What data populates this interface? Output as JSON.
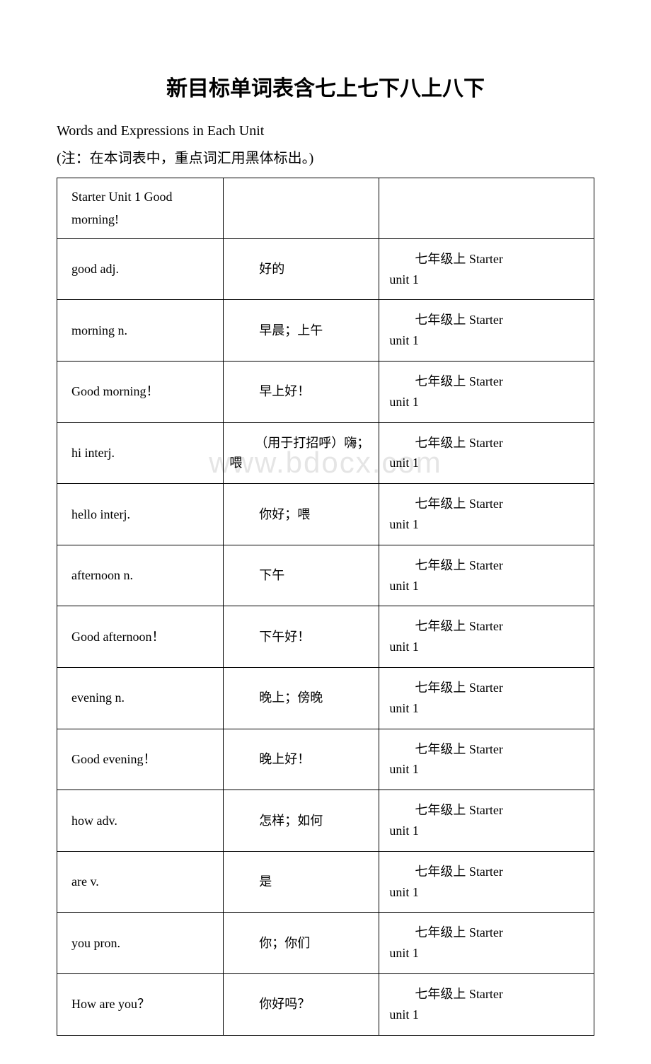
{
  "title": "新目标单词表含七上七下八上八下",
  "subtitle": "Words and Expressions in Each Unit",
  "note": "(注：在本词表中，重点词汇用黑体标出。)",
  "watermark": "www.bdocx.com",
  "table": {
    "header": {
      "col1": "Starter Unit 1 Good morning!",
      "col2": "",
      "col3": ""
    },
    "rows": [
      {
        "c1": "good adj.",
        "c2": "好的",
        "c3_prefix": "七年级上 ",
        "c3_suffix": "Starter unit 1"
      },
      {
        "c1": "morning n.",
        "c2": "早晨；上午",
        "c3_prefix": "七年级上 ",
        "c3_suffix": "Starter unit 1"
      },
      {
        "c1": "Good morning！",
        "c2": "早上好！",
        "c3_prefix": "七年级上 ",
        "c3_suffix": "Starter unit 1"
      },
      {
        "c1": "hi interj.",
        "c2": "（用于打招呼）嗨；喂",
        "c3_prefix": "七年级上 ",
        "c3_suffix": "Starter unit 1",
        "c2_indent": true
      },
      {
        "c1": "hello interj.",
        "c2": "你好；喂",
        "c3_prefix": "七年级上 ",
        "c3_suffix": "Starter unit 1"
      },
      {
        "c1": "afternoon n.",
        "c2": "下午",
        "c3_prefix": "七年级上 ",
        "c3_suffix": "Starter unit 1"
      },
      {
        "c1": "Good afternoon！",
        "c2": "下午好！",
        "c3_prefix": "七年级上 ",
        "c3_suffix": "Starter unit 1"
      },
      {
        "c1": "evening n.",
        "c2": "晚上；傍晚",
        "c3_prefix": "七年级上 ",
        "c3_suffix": "Starter unit 1"
      },
      {
        "c1": "Good evening！",
        "c2": "晚上好！",
        "c3_prefix": "七年级上 ",
        "c3_suffix": "Starter unit 1"
      },
      {
        "c1": "how  adv.",
        "c2": "怎样；如何",
        "c3_prefix": "七年级上 ",
        "c3_suffix": "Starter unit 1"
      },
      {
        "c1": "are v.",
        "c2": "是",
        "c3_prefix": "七年级上 ",
        "c3_suffix": "Starter unit 1"
      },
      {
        "c1": "you pron.",
        "c2": "你；你们",
        "c3_prefix": "七年级上 ",
        "c3_suffix": "Starter unit 1"
      },
      {
        "c1": "How are you？",
        "c2": "你好吗？",
        "c3_prefix": "七年级上 ",
        "c3_suffix": "Starter unit 1"
      }
    ]
  },
  "colors": {
    "text": "#000000",
    "border": "#000000",
    "background": "#ffffff",
    "watermark": "rgba(180,180,180,0.35)"
  }
}
